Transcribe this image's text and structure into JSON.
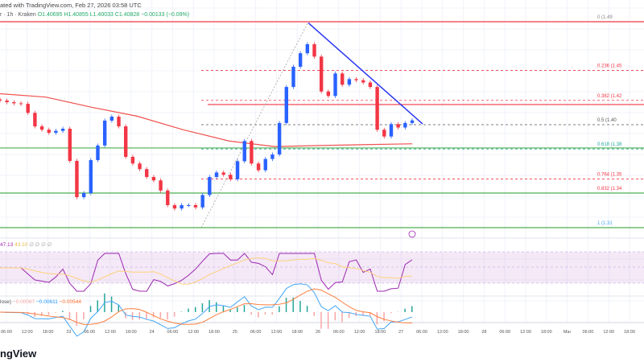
{
  "header": {
    "line1": "ated with TradingView.com, Feb 27, 2026 03:58 UTC",
    "symbol": "r · 1h · Kraken",
    "ohlc": "O1.40695 H1.40855 L1.40033 C1.40828 −0.00133 (−0.09%)"
  },
  "rsi": {
    "value": "47.13",
    "ma": "43.10",
    "extras": "∅ ∅ ∅ ∅"
  },
  "macd": {
    "label": "lose)",
    "hist": "−0.00067",
    "macd": "−0.00611",
    "signal": "−0.00544"
  },
  "logo": "ngView",
  "colors": {
    "up": "#2962ff",
    "down": "#f23645",
    "ma": "#f0524f",
    "trend": "#2b36f5",
    "support": "#4caf50",
    "rsi": "#9c27b0",
    "rsi_ma": "#fdd17a",
    "macd": "#42a5f5",
    "signal": "#ff7f3f"
  },
  "chart_data": {
    "type": "candlestick",
    "interval": "1h",
    "exchange": "Kraken",
    "ylim": [
      1.3044,
      1.5153
    ],
    "x_ticks": [
      "06:00",
      "12:00",
      "18:00",
      "23",
      "06:00",
      "12:00",
      "18:00",
      "24",
      "06:00",
      "12:00",
      "18:00",
      "25",
      "06:00",
      "12:00",
      "18:00",
      "26",
      "06:00",
      "12:00",
      "18:00",
      "27",
      "06:00",
      "12:00",
      "18:00",
      "28",
      "06:00",
      "12:00",
      "18:00",
      "Mar",
      "06:00",
      "12:00",
      "18:00"
    ],
    "close": [
      1.4259,
      1.4245,
      1.4235,
      1.423,
      1.415,
      1.403,
      1.4,
      1.3973,
      1.399,
      1.4009,
      1.3723,
      1.3401,
      1.3437,
      1.373,
      1.386,
      1.4081,
      1.4116,
      1.403,
      1.3759,
      1.37,
      1.365,
      1.358,
      1.355,
      1.346,
      1.333,
      1.33,
      1.333,
      1.333,
      1.331,
      1.342,
      1.358,
      1.362,
      1.36,
      1.356,
      1.372,
      1.39,
      1.37,
      1.364,
      1.374,
      1.378,
      1.406,
      1.438,
      1.456,
      1.468,
      1.476,
      1.465,
      1.434,
      1.43,
      1.45,
      1.44,
      1.445,
      1.444,
      1.442,
      1.438,
      1.4,
      1.394,
      1.405,
      1.402,
      1.406,
      1.4083
    ],
    "moving_average": [
      1.432,
      1.429,
      1.42,
      1.412,
      1.4,
      1.39,
      1.385,
      1.386,
      1.3868,
      1.3875
    ],
    "fib_levels": [
      {
        "ratio": "0",
        "price": 1.496,
        "label": "0 (1.49",
        "color": "#888888"
      },
      {
        "ratio": "0.236",
        "price": 1.4528,
        "label": "0.236 (1.45",
        "color": "#f23645"
      },
      {
        "ratio": "0.382",
        "price": 1.4261,
        "label": "0.382 (1.42",
        "color": "#f23645"
      },
      {
        "ratio": "0.5",
        "price": 1.4045,
        "label": "0.5 (1.40",
        "color": "#555555"
      },
      {
        "ratio": "0.618",
        "price": 1.3829,
        "label": "0.618 (1.38",
        "color": "#26a69a"
      },
      {
        "ratio": "0.764",
        "price": 1.3562,
        "label": "0.764 (1.35",
        "color": "#f23645"
      },
      {
        "ratio": "0.832",
        "price": 1.3438,
        "label": "0.832 (1.34",
        "color": "#f23645"
      },
      {
        "ratio": "1",
        "price": 1.313,
        "label": "1 (1.31",
        "color": "#42a5f5"
      }
    ],
    "horizontal_lines": [
      {
        "price": 1.496,
        "color": "#f23645"
      },
      {
        "price": 1.4224,
        "color": "#f23645"
      },
      {
        "price": 1.3838,
        "color": "#4caf50"
      },
      {
        "price": 1.3437,
        "color": "#4caf50"
      },
      {
        "price": 1.313,
        "color": "#4caf50"
      }
    ],
    "trendline": [
      1.495,
      1.4052
    ]
  }
}
